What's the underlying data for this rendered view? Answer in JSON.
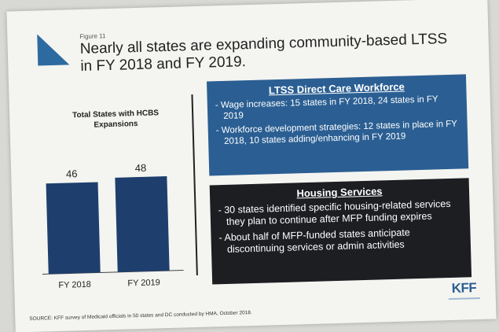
{
  "figure_label": "Figure 11",
  "title": "Nearly all states are expanding community-based LTSS in FY 2018 and FY 2019.",
  "chart_data": {
    "type": "bar",
    "title": "Total States with HCBS Expansions",
    "categories": [
      "FY 2018",
      "FY 2019"
    ],
    "values": [
      46,
      48
    ],
    "ylim": [
      0,
      60
    ],
    "grid": false,
    "bar_color": "#1e3f6e"
  },
  "workforce_panel": {
    "heading": "LTSS Direct Care Workforce",
    "items": [
      "Wage increases: 15 states in FY 2018, 24 states in FY 2019",
      "Workforce development strategies: 12 states in place in FY 2018, 10 states adding/enhancing in FY 2019"
    ],
    "color": "#2b5f93"
  },
  "housing_panel": {
    "heading": "Housing Services",
    "items": [
      "30 states identified specific housing-related services they plan to continue after MFP funding expires",
      "About half of MFP-funded states anticipate discontinuing services or admin activities"
    ],
    "color": "#1d1e22"
  },
  "source": "SOURCE: KFF survey of Medicaid officials in 50 states and DC conducted by HMA, October 2018.",
  "logo": "KFF"
}
